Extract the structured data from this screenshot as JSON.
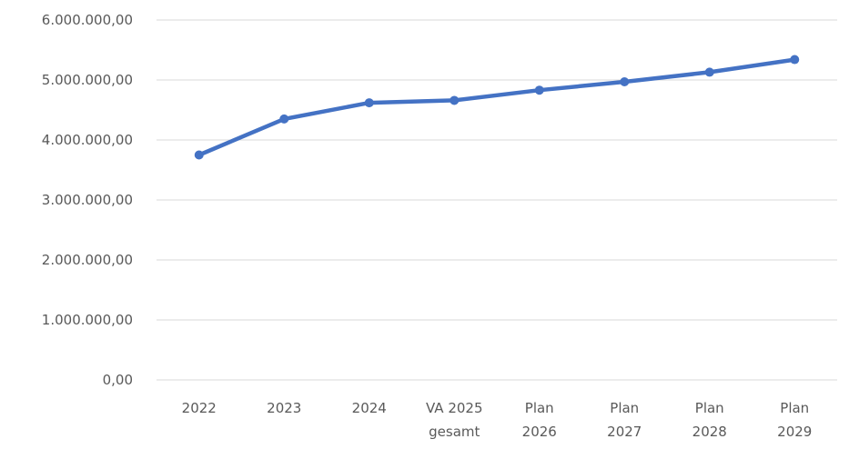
{
  "chart_data": {
    "type": "line",
    "title": "",
    "xlabel": "",
    "ylabel": "",
    "categories": [
      [
        "2022"
      ],
      [
        "2023"
      ],
      [
        "2024"
      ],
      [
        "VA 2025",
        "gesamt"
      ],
      [
        "Plan",
        "2026"
      ],
      [
        "Plan",
        "2027"
      ],
      [
        "Plan",
        "2028"
      ],
      [
        "Plan",
        "2029"
      ]
    ],
    "y_tick_labels": [
      "0,00",
      "1.000.000,00",
      "2.000.000,00",
      "3.000.000,00",
      "4.000.000,00",
      "5.000.000,00",
      "6.000.000,00"
    ],
    "ylim": [
      0,
      6000000
    ],
    "y_step": 1000000,
    "grid": true,
    "legend": "none",
    "series": [
      {
        "color": "#4472C4",
        "values": [
          3750000,
          4350000,
          4620000,
          4660000,
          4830000,
          4970000,
          5130000,
          5340000
        ]
      }
    ],
    "gridline_color": "#d9d9d9",
    "label_color": "#595959"
  }
}
